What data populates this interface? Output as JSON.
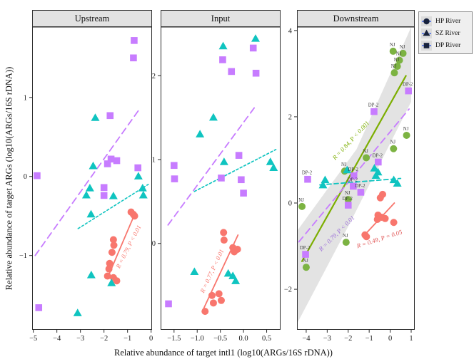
{
  "figure": {
    "x_axis_label": "Relative abundance of target intl1 (log10(ARGs/16S rDNA))",
    "y_axis_label": "Relative abundance of target ARGs (log10(ARGs/16S rDNA))"
  },
  "legend": {
    "items": [
      {
        "label": "HP River",
        "marker": "circle"
      },
      {
        "label": "SZ River",
        "marker": "triangle"
      },
      {
        "label": "DP River",
        "marker": "square"
      }
    ],
    "marker_color": "#17213c",
    "line_color": "#3E64E8",
    "key_bg": "#DCDCDC"
  },
  "colors": {
    "hp_red": "#F8766D",
    "hp_green": "#7CB342",
    "green_line": "#7CAE00",
    "sz_teal": "#0FC4C0",
    "dp_purple": "#C77CFF",
    "band_gray": "#9a9a9a"
  },
  "chart_data": [
    {
      "type": "scatter",
      "title": "Upstream",
      "xlim": [
        -5.05,
        0.04
      ],
      "ylim": [
        -1.94,
        1.89
      ],
      "xticks": [
        -5,
        -4,
        -3,
        -2,
        -1,
        0
      ],
      "xtick_labels": [
        "−5",
        "−4",
        "−3",
        "−2",
        "−1",
        "0"
      ],
      "yticks": [
        -1,
        0,
        1
      ],
      "ytick_labels": [
        "−1",
        "0",
        "1"
      ],
      "series": [
        {
          "name": "HP River",
          "marker": "circle",
          "color": "#F8766D",
          "points": [
            [
              -0.85,
              -0.45
            ],
            [
              -0.75,
              -0.48
            ],
            [
              -0.7,
              -0.5
            ],
            [
              -1.6,
              -0.8
            ],
            [
              -1.58,
              -0.87
            ],
            [
              -1.66,
              -0.96
            ],
            [
              -1.76,
              -1.1
            ],
            [
              -1.79,
              -1.17
            ],
            [
              -1.85,
              -1.26
            ],
            [
              -1.6,
              -1.28
            ],
            [
              -1.46,
              -1.32
            ]
          ]
        },
        {
          "name": "SZ River",
          "marker": "triangle",
          "color": "#0FC4C0",
          "points": [
            [
              -2.37,
              0.74
            ],
            [
              -2.46,
              0.13
            ],
            [
              -0.54,
              0.0
            ],
            [
              -2.6,
              -0.15
            ],
            [
              -2.75,
              -0.24
            ],
            [
              -1.6,
              -0.25
            ],
            [
              -0.36,
              -0.15
            ],
            [
              -0.33,
              -0.24
            ],
            [
              -2.55,
              -0.48
            ],
            [
              -2.54,
              -1.25
            ],
            [
              -1.68,
              -1.35
            ],
            [
              -3.12,
              -1.73
            ]
          ]
        },
        {
          "name": "DP River",
          "marker": "square",
          "color": "#C77CFF",
          "points": [
            [
              -4.84,
              0.01
            ],
            [
              -0.72,
              1.72
            ],
            [
              -0.75,
              1.5
            ],
            [
              -1.74,
              0.77
            ],
            [
              -1.7,
              0.22
            ],
            [
              -1.46,
              0.2
            ],
            [
              -1.85,
              0.16
            ],
            [
              -0.56,
              0.11
            ],
            [
              -2.0,
              -0.14
            ],
            [
              -2.0,
              -0.24
            ],
            [
              -4.77,
              -1.66
            ]
          ]
        }
      ],
      "lines": [
        {
          "x1": -4.92,
          "y1": -1.0,
          "x2": -0.5,
          "y2": 0.85,
          "color": "#C77CFF",
          "dash": "9,6",
          "w": 1.8
        },
        {
          "x1": -3.1,
          "y1": -0.66,
          "x2": -0.12,
          "y2": -0.1,
          "color": "#0FC4C0",
          "dash": "3,3",
          "w": 1.6
        },
        {
          "x1": -1.76,
          "y1": -1.22,
          "x2": -0.73,
          "y2": -0.5,
          "color": "#F8766D",
          "dash": "",
          "w": 1.8
        }
      ],
      "annotations": [
        {
          "text": "R = 0.79, P < 0.01",
          "color": "#F8766D",
          "x": -0.88,
          "y": -0.9,
          "rotate": -63
        }
      ]
    },
    {
      "type": "scatter",
      "title": "Input",
      "xlim": [
        -1.79,
        0.8
      ],
      "ylim": [
        -1.03,
        2.58
      ],
      "xticks": [
        -1.5,
        -1.0,
        -0.5,
        0.0,
        0.5
      ],
      "xtick_labels": [
        "−1.5",
        "−1.0",
        "−0.5",
        "0.0",
        "0.5"
      ],
      "yticks": [
        0,
        1,
        2
      ],
      "ytick_labels": [
        "0",
        "1",
        "2"
      ],
      "series": [
        {
          "name": "HP River",
          "marker": "circle",
          "color": "#F8766D",
          "points": [
            [
              -0.43,
              0.13
            ],
            [
              -0.42,
              0.04
            ],
            [
              -0.23,
              -0.05
            ],
            [
              -0.2,
              -0.1
            ],
            [
              -0.13,
              -0.07
            ],
            [
              -0.68,
              -0.62
            ],
            [
              -0.53,
              -0.6
            ],
            [
              -0.48,
              -0.68
            ],
            [
              -0.65,
              -0.71
            ],
            [
              -0.83,
              -0.81
            ]
          ]
        },
        {
          "name": "SZ River",
          "marker": "triangle",
          "color": "#0FC4C0",
          "points": [
            [
              0.26,
              2.44
            ],
            [
              -0.44,
              2.35
            ],
            [
              -0.65,
              1.5
            ],
            [
              -0.94,
              1.3
            ],
            [
              -0.42,
              0.97
            ],
            [
              0.58,
              0.97
            ],
            [
              0.65,
              0.9
            ],
            [
              -1.06,
              -0.34
            ],
            [
              -0.33,
              -0.36
            ],
            [
              -0.23,
              -0.39
            ],
            [
              -0.17,
              -0.45
            ]
          ]
        },
        {
          "name": "DP River",
          "marker": "square",
          "color": "#C77CFF",
          "points": [
            [
              0.21,
              2.33
            ],
            [
              -0.45,
              2.19
            ],
            [
              -0.26,
              2.05
            ],
            [
              0.27,
              2.03
            ],
            [
              -0.1,
              1.05
            ],
            [
              -1.5,
              0.93
            ],
            [
              -1.49,
              0.77
            ],
            [
              -0.48,
              0.78
            ],
            [
              -0.05,
              0.76
            ],
            [
              0.0,
              0.6
            ],
            [
              -1.62,
              -0.72
            ]
          ]
        }
      ],
      "lines": [
        {
          "x1": -1.63,
          "y1": 0.22,
          "x2": 0.25,
          "y2": 1.63,
          "color": "#C77CFF",
          "dash": "9,6",
          "w": 1.8
        },
        {
          "x1": -1.06,
          "y1": 0.62,
          "x2": 0.7,
          "y2": 1.12,
          "color": "#0FC4C0",
          "dash": "3,3",
          "w": 1.6
        },
        {
          "x1": -0.88,
          "y1": -0.8,
          "x2": -0.12,
          "y2": 0.1,
          "color": "#F8766D",
          "dash": "",
          "w": 1.8
        }
      ],
      "annotations": [
        {
          "text": "R = 0.77, P < 0.01",
          "color": "#F8766D",
          "x": -0.64,
          "y": -0.34,
          "rotate": -65
        }
      ]
    },
    {
      "type": "scatter",
      "title": "Downstream",
      "xlim": [
        -4.44,
        1.17
      ],
      "ylim": [
        -2.94,
        4.08
      ],
      "xticks": [
        -4,
        -3,
        -2,
        -1,
        0,
        1
      ],
      "xtick_labels": [
        "−4",
        "−3",
        "−2",
        "−1",
        "0",
        "1"
      ],
      "yticks": [
        -2,
        0,
        2,
        4
      ],
      "ytick_labels": [
        "−2",
        "0",
        "2",
        "4"
      ],
      "band": [
        [
          -4.44,
          -2.8
        ],
        [
          -1.9,
          -0.45
        ],
        [
          1.0,
          2.35
        ],
        [
          1.0,
          4.08
        ],
        [
          -1.6,
          1.25
        ],
        [
          -4.44,
          -0.65
        ]
      ],
      "series": [
        {
          "name": "HP River (NJ)",
          "marker": "circle",
          "color": "#7CB342",
          "points": [
            [
              0.14,
              3.52,
              "NJ"
            ],
            [
              0.61,
              3.47,
              "NJ"
            ],
            [
              0.44,
              3.31,
              "NJ"
            ],
            [
              0.34,
              3.17,
              "NJ"
            ],
            [
              0.2,
              3.02,
              "NJ"
            ],
            [
              0.78,
              1.57,
              "NJ"
            ],
            [
              0.16,
              1.26,
              "NJ"
            ],
            [
              -1.14,
              1.05,
              "NJ"
            ],
            [
              -2.17,
              0.74,
              "NJ"
            ],
            [
              -2.0,
              0.08,
              "NJ"
            ],
            [
              -4.2,
              -0.08,
              "NJ"
            ],
            [
              -2.1,
              -0.91,
              "NJ"
            ],
            [
              -4.0,
              -1.49,
              "NJ"
            ]
          ]
        },
        {
          "name": "HP River",
          "marker": "circle",
          "color": "#F8766D",
          "points": [
            [
              -0.36,
              0.2
            ],
            [
              -0.47,
              0.12
            ],
            [
              -0.58,
              -0.28
            ],
            [
              -0.41,
              -0.33
            ],
            [
              -0.61,
              -0.38
            ],
            [
              -0.24,
              -0.36
            ],
            [
              0.17,
              -0.45
            ],
            [
              -1.2,
              -0.74
            ],
            [
              -1.13,
              -0.78
            ]
          ]
        },
        {
          "name": "SZ River",
          "marker": "triangle",
          "color": "#0FC4C0",
          "points": [
            [
              -3.1,
              0.53
            ],
            [
              -3.2,
              0.41
            ],
            [
              -2.05,
              0.76
            ],
            [
              -0.75,
              0.8
            ],
            [
              -0.58,
              0.71
            ],
            [
              -0.68,
              0.63
            ],
            [
              0.17,
              0.53
            ],
            [
              0.34,
              0.45
            ]
          ]
        },
        {
          "name": "DP River",
          "marker": "square",
          "color": "#C77CFF",
          "points": [
            [
              0.87,
              2.6,
              "DP-2"
            ],
            [
              -0.77,
              2.12,
              "DP-2"
            ],
            [
              -0.57,
              0.95,
              "DP-2"
            ],
            [
              -1.73,
              0.63,
              "DP-2"
            ],
            [
              -1.76,
              0.39,
              "DP-2"
            ],
            [
              -1.4,
              0.25,
              "DP-2"
            ],
            [
              -2.0,
              -0.05,
              "DP-2"
            ],
            [
              -3.93,
              0.55,
              "DP-2"
            ],
            [
              -4.03,
              -1.19,
              "DP-2"
            ]
          ]
        }
      ],
      "lines": [
        {
          "x1": -4.2,
          "y1": -1.35,
          "x2": 0.75,
          "y2": 2.95,
          "color": "#7CAE00",
          "dash": "",
          "w": 2.2
        },
        {
          "x1": -4.35,
          "y1": -0.9,
          "x2": 0.9,
          "y2": 2.18,
          "color": "#C77CFF",
          "dash": "9,6",
          "w": 1.8
        },
        {
          "x1": -3.35,
          "y1": 0.42,
          "x2": 0.5,
          "y2": 0.57,
          "color": "#0FC4C0",
          "dash": "6,4",
          "w": 1.8
        },
        {
          "x1": -1.18,
          "y1": -0.72,
          "x2": 0.2,
          "y2": 0.0,
          "color": "#F8766D",
          "dash": "",
          "w": 1.8
        }
      ],
      "annotations": [
        {
          "text": "R = 0.84, P < 0.001",
          "color": "#7CAE00",
          "x": -1.8,
          "y": 1.42,
          "rotate": -47
        },
        {
          "text": "R = 0.79, P < 0.01",
          "color": "#9A6BD8",
          "x": -2.48,
          "y": -0.74,
          "rotate": -45
        },
        {
          "text": "R = 0.49, P = 0.05",
          "color": "#E05252",
          "x": -0.48,
          "y": -0.88,
          "rotate": -18
        }
      ]
    }
  ]
}
